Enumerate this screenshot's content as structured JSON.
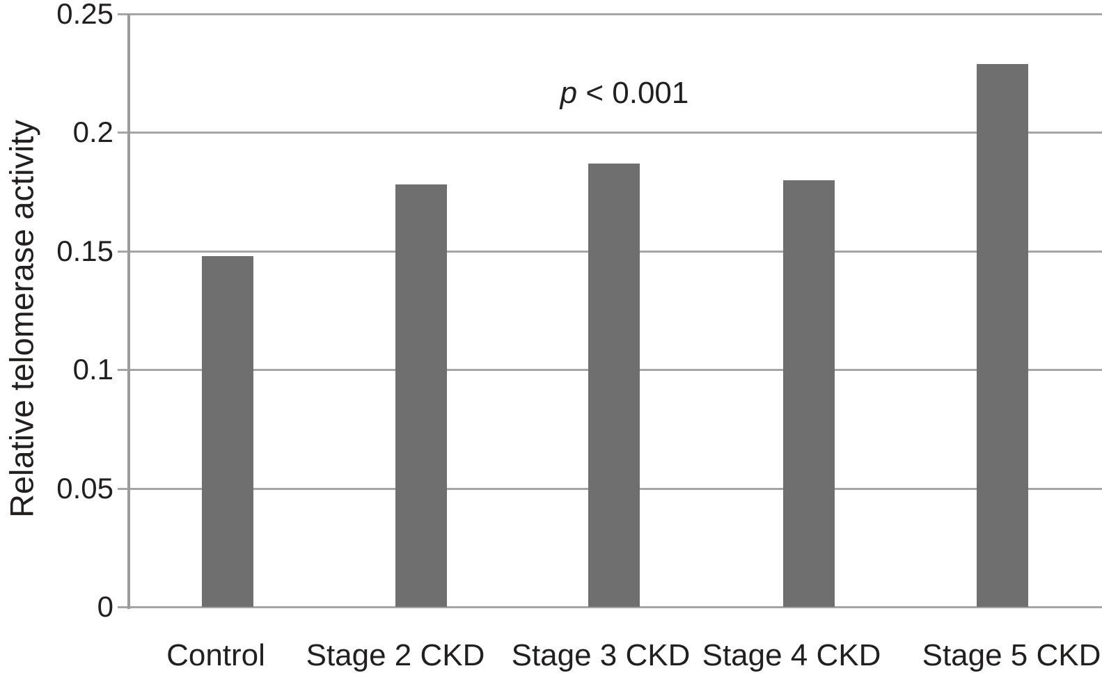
{
  "chart_data": {
    "type": "bar",
    "title": "",
    "xlabel": "",
    "ylabel": "Relative telomerase activity",
    "categories": [
      "Control",
      "Stage 2 CKD",
      "Stage 3 CKD",
      "Stage 4 CKD",
      "Stage 5 CKD"
    ],
    "values": [
      0.148,
      0.178,
      0.187,
      0.18,
      0.229
    ],
    "ylim": [
      0,
      0.25
    ],
    "yticks": [
      0,
      0.05,
      0.1,
      0.15,
      0.2,
      0.25
    ],
    "ytick_labels": [
      "0",
      "0.05",
      "0.1",
      "0.15",
      "0.2",
      "0.25"
    ],
    "annotation": {
      "symbol": "p",
      "text": "< 0.001"
    },
    "grid": true,
    "legend_position": "none",
    "colors": {
      "bar": "#6f6f6f",
      "gridline": "#a5a5a5",
      "axis": "#9b9b9b",
      "text": "#221f1f",
      "background": "#ffffff"
    }
  }
}
